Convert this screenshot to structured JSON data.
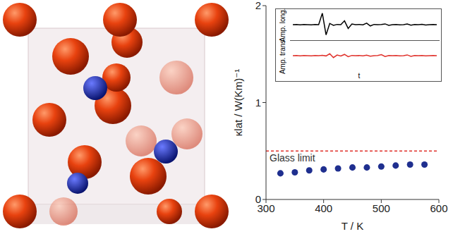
{
  "chart_data": [
    {
      "type": "scatter",
      "x_label": "T / K",
      "y_label": "κlat / W(Km)⁻¹",
      "x": [
        325,
        350,
        375,
        400,
        425,
        450,
        475,
        500,
        525,
        550,
        575
      ],
      "values": [
        0.27,
        0.28,
        0.3,
        0.31,
        0.32,
        0.33,
        0.33,
        0.34,
        0.35,
        0.36,
        0.36
      ],
      "color": "#1f2f8f",
      "marker": "circle",
      "xlim": [
        300,
        600
      ],
      "xticks": [
        300,
        400,
        500,
        600
      ],
      "ylim": [
        0,
        2
      ],
      "yticks": [
        0,
        1,
        2
      ],
      "reference_lines": [
        {
          "label": "Glass limit",
          "value": 0.5,
          "color": "#e0302a",
          "line_style": "dashed"
        }
      ]
    },
    {
      "type": "line",
      "y_label": "Amp. long.",
      "values": [
        0,
        0.02,
        -0.02,
        0.01,
        0,
        -0.01,
        0.02,
        0,
        0.9,
        -0.8,
        0.1,
        -0.05,
        0.02,
        0,
        0.3,
        -0.3,
        0.05,
        0,
        0.02,
        -0.01,
        0.12,
        -0.1,
        0.02,
        0,
        0.01,
        0.06,
        -0.05,
        0,
        0.02,
        -0.02,
        0,
        0.05,
        -0.04,
        0.01,
        0,
        0.03,
        -0.03,
        0,
        0.01,
        0
      ],
      "color": "#000000",
      "ylim": [
        -1,
        1
      ],
      "tick_labels": false
    },
    {
      "type": "line",
      "y_label": "Amp. trans.",
      "x_label": "t",
      "values": [
        0,
        0.01,
        -0.01,
        0.02,
        0,
        -0.02,
        0.01,
        0,
        0.03,
        -0.02,
        0.15,
        -0.15,
        0.05,
        -0.03,
        0.1,
        -0.08,
        0.02,
        0,
        0.01,
        -0.01,
        0.04,
        -0.04,
        0,
        0.01,
        0.08,
        -0.07,
        0.01,
        0,
        0.02,
        -0.02,
        0,
        0.06,
        -0.05,
        0.01,
        0,
        0.02,
        -0.02,
        0,
        0.01,
        0
      ],
      "color": "#e0302a",
      "ylim": [
        -1,
        1
      ],
      "tick_labels": false
    }
  ]
}
